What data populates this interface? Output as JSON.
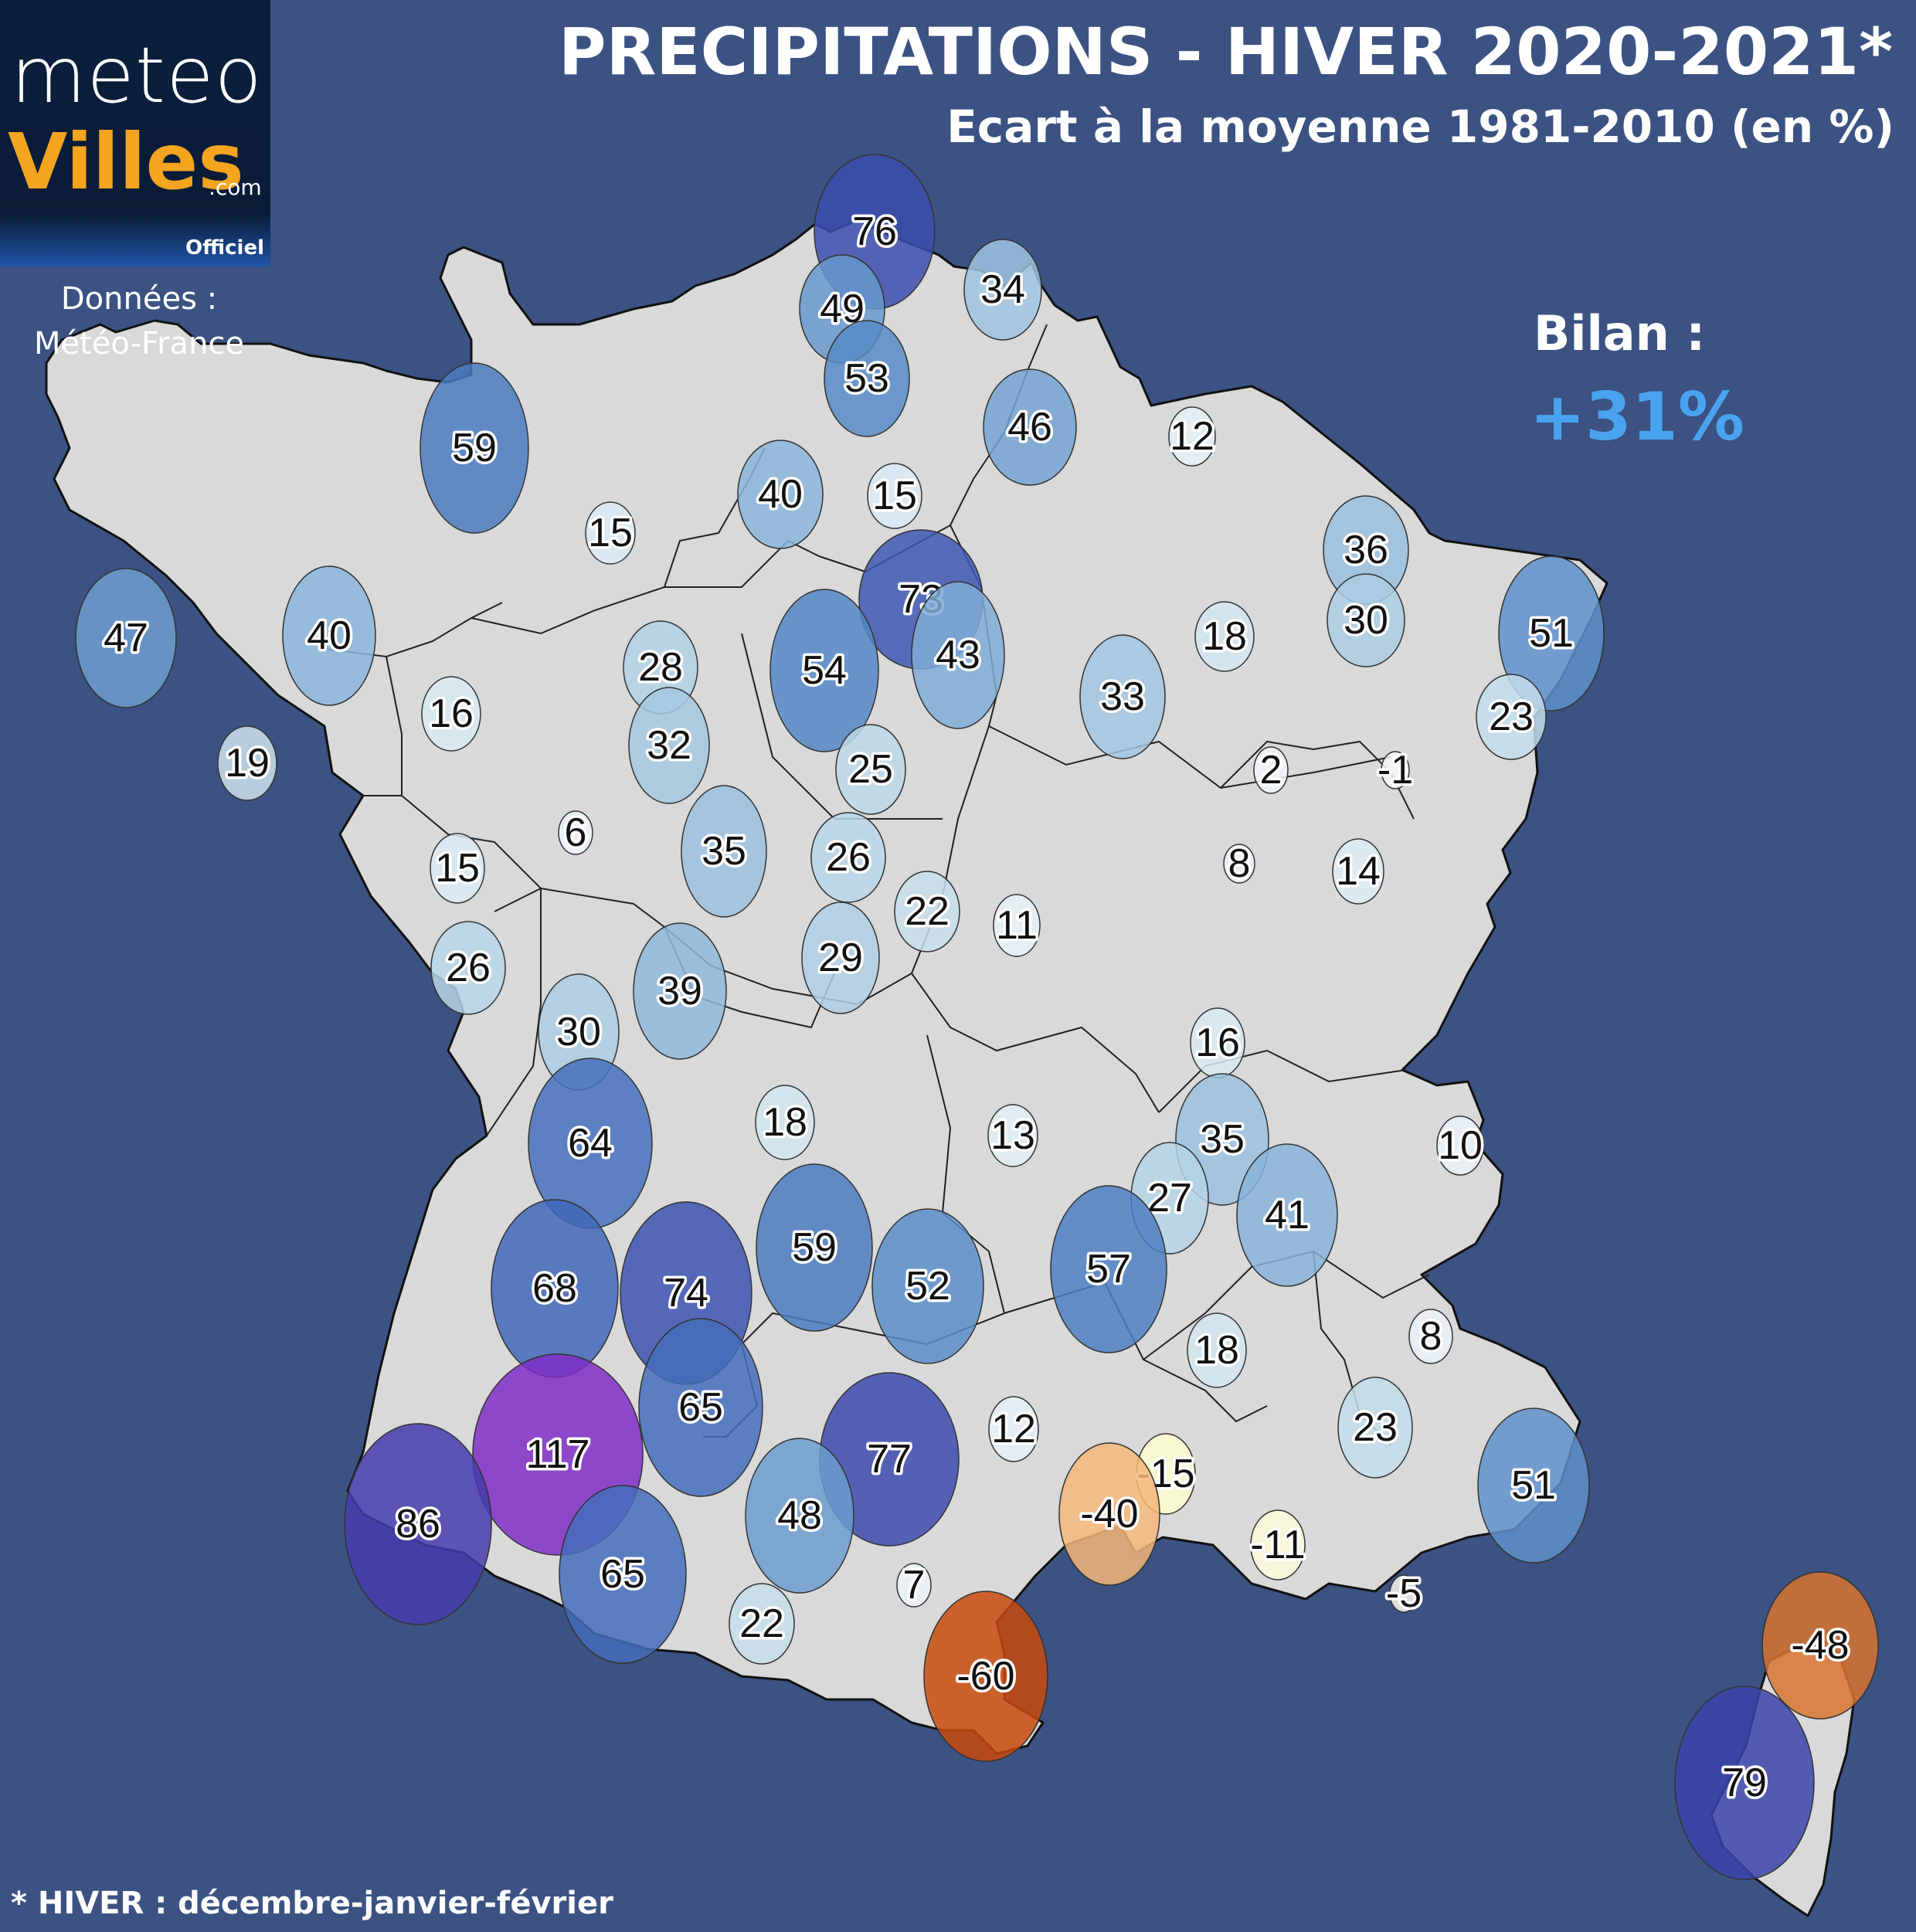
{
  "logo": {
    "meteo": "meteo",
    "villes": "Villes",
    "com": ".com",
    "officiel": "Officiel"
  },
  "source": {
    "line1": "Données :",
    "line2": "Météo-France"
  },
  "title": "PRECIPITATIONS - HIVER 2020-2021*",
  "subtitle": "Ecart à la moyenne 1981-2010 (en %)",
  "bilan": {
    "label": "Bilan :",
    "value": "+31%"
  },
  "footnote": "* HIVER : décembre-janvier-février",
  "colors": {
    "background": "#3b5282",
    "land": "#d9d9d9",
    "bilan_value": "#4aa3ee"
  },
  "stations": [
    {
      "label": "76",
      "value": 76
    },
    {
      "label": "49",
      "value": 49
    },
    {
      "label": "34",
      "value": 34
    },
    {
      "label": "53",
      "value": 53
    },
    {
      "label": "46",
      "value": 46
    },
    {
      "label": "59",
      "value": 59
    },
    {
      "label": "40",
      "value": 40
    },
    {
      "label": "15",
      "value": 15
    },
    {
      "label": "15",
      "value": 15
    },
    {
      "label": "12",
      "value": 12
    },
    {
      "label": "36",
      "value": 36
    },
    {
      "label": "73",
      "value": 73
    },
    {
      "label": "30",
      "value": 30
    },
    {
      "label": "47",
      "value": 47
    },
    {
      "label": "40",
      "value": 40
    },
    {
      "label": "28",
      "value": 28
    },
    {
      "label": "54",
      "value": 54
    },
    {
      "label": "43",
      "value": 43
    },
    {
      "label": "18",
      "value": 18
    },
    {
      "label": "51",
      "value": 51
    },
    {
      "label": "16",
      "value": 16
    },
    {
      "label": "33",
      "value": 33
    },
    {
      "label": "23",
      "value": 23
    },
    {
      "label": "32",
      "value": 32
    },
    {
      "label": "19",
      "value": 19
    },
    {
      "label": "25",
      "value": 25
    },
    {
      "label": "2",
      "value": 2
    },
    {
      "label": "-1",
      "value": -1
    },
    {
      "label": "6",
      "value": 6
    },
    {
      "label": "35",
      "value": 35
    },
    {
      "label": "26",
      "value": 26
    },
    {
      "label": "15",
      "value": 15
    },
    {
      "label": "8",
      "value": 8
    },
    {
      "label": "14",
      "value": 14
    },
    {
      "label": "22",
      "value": 22
    },
    {
      "label": "11",
      "value": 11
    },
    {
      "label": "26",
      "value": 26
    },
    {
      "label": "29",
      "value": 29
    },
    {
      "label": "39",
      "value": 39
    },
    {
      "label": "30",
      "value": 30
    },
    {
      "label": "16",
      "value": 16
    },
    {
      "label": "18",
      "value": 18
    },
    {
      "label": "13",
      "value": 13
    },
    {
      "label": "35",
      "value": 35
    },
    {
      "label": "64",
      "value": 64
    },
    {
      "label": "10",
      "value": 10
    },
    {
      "label": "27",
      "value": 27
    },
    {
      "label": "41",
      "value": 41
    },
    {
      "label": "59",
      "value": 59
    },
    {
      "label": "57",
      "value": 57
    },
    {
      "label": "68",
      "value": 68
    },
    {
      "label": "74",
      "value": 74
    },
    {
      "label": "52",
      "value": 52
    },
    {
      "label": "8",
      "value": 8
    },
    {
      "label": "18",
      "value": 18
    },
    {
      "label": "65",
      "value": 65
    },
    {
      "label": "23",
      "value": 23
    },
    {
      "label": "117",
      "value": 117
    },
    {
      "label": "77",
      "value": 77
    },
    {
      "label": "12",
      "value": 12
    },
    {
      "label": "-15",
      "value": -15
    },
    {
      "label": "51",
      "value": 51
    },
    {
      "label": "86",
      "value": 86
    },
    {
      "label": "48",
      "value": 48
    },
    {
      "label": "-40",
      "value": -40
    },
    {
      "label": "-11",
      "value": -11
    },
    {
      "label": "65",
      "value": 65
    },
    {
      "label": "7",
      "value": 7
    },
    {
      "label": "-5",
      "value": -5
    },
    {
      "label": "22",
      "value": 22
    },
    {
      "label": "-60",
      "value": -60
    },
    {
      "label": "-48",
      "value": -48
    },
    {
      "label": "79",
      "value": 79
    }
  ]
}
